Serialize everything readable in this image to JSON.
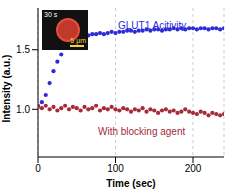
{
  "chart_data": {
    "type": "scatter",
    "x_label": "Time (sec)",
    "y_label": "Intensity (a.u.)",
    "x": [
      0,
      5,
      10,
      15,
      20,
      25,
      30,
      35,
      40,
      45,
      50,
      55,
      60,
      65,
      70,
      75,
      80,
      85,
      90,
      95,
      100,
      105,
      110,
      115,
      120,
      125,
      130,
      135,
      140,
      145,
      150,
      155,
      160,
      165,
      170,
      175,
      180,
      185,
      190,
      195,
      200,
      205,
      210,
      215,
      220,
      225,
      230,
      235,
      240
    ],
    "series": [
      {
        "name": "GLUT1 Acitivity",
        "color": "#2b2bd9",
        "marker": "circle",
        "values": [
          1.03,
          1.06,
          1.12,
          1.22,
          1.32,
          1.4,
          1.46,
          1.52,
          1.55,
          1.58,
          1.6,
          1.61,
          1.62,
          1.62,
          1.63,
          1.63,
          1.64,
          1.63,
          1.64,
          1.65,
          1.64,
          1.65,
          1.65,
          1.66,
          1.66,
          1.65,
          1.66,
          1.66,
          1.67,
          1.66,
          1.67,
          1.67,
          1.66,
          1.67,
          1.67,
          1.68,
          1.67,
          1.68,
          1.67,
          1.68,
          1.68,
          1.67,
          1.68,
          1.68,
          1.67,
          1.68,
          1.68,
          1.67,
          1.68
        ]
      },
      {
        "name": "With blocking agent",
        "color": "#a52a3a",
        "marker": "circle",
        "values": [
          1.02,
          1.01,
          1.03,
          1.0,
          1.02,
          0.99,
          1.01,
          1.03,
          1.0,
          1.02,
          1.01,
          0.99,
          1.02,
          1.0,
          1.01,
          1.03,
          0.99,
          1.01,
          1.0,
          1.02,
          1.0,
          0.99,
          1.01,
          1.0,
          0.98,
          1.0,
          0.99,
          1.01,
          0.98,
          1.0,
          0.99,
          0.97,
          0.99,
          1.0,
          0.98,
          0.99,
          0.97,
          0.98,
          1.0,
          0.98,
          0.97,
          0.96,
          0.98,
          0.97,
          0.95,
          0.97,
          0.96,
          0.95,
          0.96
        ]
      }
    ],
    "xlim": [
      0,
      240
    ],
    "xticks": [
      0,
      100,
      200
    ],
    "ylim": [
      0.6,
      1.85
    ],
    "yticks": [
      {
        "value": 1,
        "label": "1.0"
      },
      {
        "value": 1.5,
        "label": "1.5"
      }
    ],
    "grid": true,
    "annotations": [
      "30 s",
      "5 μm"
    ]
  }
}
